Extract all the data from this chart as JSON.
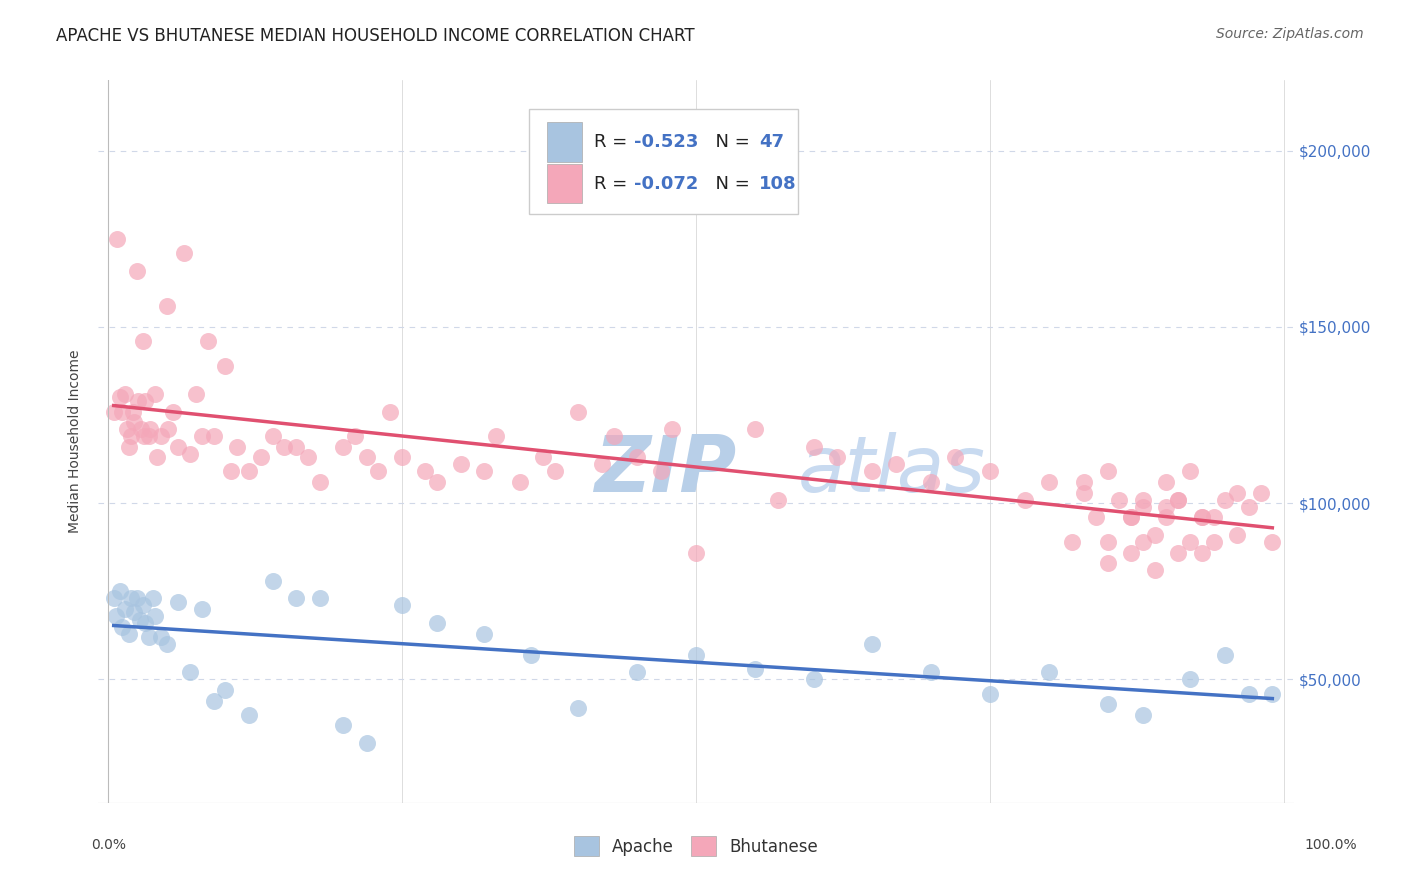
{
  "title": "APACHE VS BHUTANESE MEDIAN HOUSEHOLD INCOME CORRELATION CHART",
  "source": "Source: ZipAtlas.com",
  "ylabel": "Median Household Income",
  "watermark_zip": "ZIP",
  "watermark_atlas": "atlas",
  "legend_apache": "Apache",
  "legend_bhutanese": "Bhutanese",
  "apache_R": "-0.523",
  "apache_N": "47",
  "bhutanese_R": "-0.072",
  "bhutanese_N": "108",
  "ytick_values": [
    50000,
    100000,
    150000,
    200000
  ],
  "apache_color": "#a8c4e0",
  "apache_line_color": "#4472c4",
  "bhutanese_color": "#f4a7b9",
  "bhutanese_line_color": "#e05070",
  "background_color": "#ffffff",
  "grid_color": "#d0d8e8",
  "apache_x": [
    0.005,
    0.007,
    0.01,
    0.012,
    0.015,
    0.018,
    0.02,
    0.022,
    0.025,
    0.027,
    0.03,
    0.032,
    0.035,
    0.038,
    0.04,
    0.045,
    0.05,
    0.06,
    0.07,
    0.08,
    0.09,
    0.1,
    0.12,
    0.14,
    0.16,
    0.18,
    0.2,
    0.22,
    0.25,
    0.28,
    0.32,
    0.36,
    0.4,
    0.45,
    0.5,
    0.55,
    0.6,
    0.65,
    0.7,
    0.75,
    0.8,
    0.85,
    0.88,
    0.92,
    0.95,
    0.97,
    0.99
  ],
  "apache_y": [
    73000,
    68000,
    75000,
    65000,
    70000,
    63000,
    73000,
    69000,
    73000,
    67000,
    71000,
    66000,
    62000,
    73000,
    68000,
    62000,
    60000,
    72000,
    52000,
    70000,
    44000,
    47000,
    40000,
    78000,
    73000,
    73000,
    37000,
    32000,
    71000,
    66000,
    63000,
    57000,
    42000,
    52000,
    57000,
    53000,
    50000,
    60000,
    52000,
    46000,
    52000,
    43000,
    40000,
    50000,
    57000,
    46000,
    46000
  ],
  "bhutanese_x": [
    0.005,
    0.008,
    0.01,
    0.012,
    0.015,
    0.016,
    0.018,
    0.02,
    0.021,
    0.022,
    0.025,
    0.026,
    0.028,
    0.03,
    0.031,
    0.032,
    0.035,
    0.036,
    0.04,
    0.042,
    0.045,
    0.05,
    0.051,
    0.055,
    0.06,
    0.065,
    0.07,
    0.075,
    0.08,
    0.085,
    0.09,
    0.1,
    0.105,
    0.11,
    0.12,
    0.13,
    0.14,
    0.15,
    0.16,
    0.17,
    0.18,
    0.2,
    0.21,
    0.22,
    0.23,
    0.24,
    0.25,
    0.27,
    0.28,
    0.3,
    0.32,
    0.33,
    0.35,
    0.37,
    0.38,
    0.4,
    0.42,
    0.43,
    0.45,
    0.47,
    0.48,
    0.5,
    0.55,
    0.57,
    0.6,
    0.62,
    0.65,
    0.67,
    0.7,
    0.72,
    0.75,
    0.78,
    0.8,
    0.83,
    0.85,
    0.88,
    0.9,
    0.92,
    0.95,
    0.97,
    0.98,
    0.99,
    0.83,
    0.86,
    0.87,
    0.9,
    0.91,
    0.93,
    0.94,
    0.96,
    0.88,
    0.84,
    0.82,
    0.91,
    0.93,
    0.85,
    0.87,
    0.89,
    0.91,
    0.94,
    0.92,
    0.96,
    0.93,
    0.88,
    0.9,
    0.85,
    0.87,
    0.89
  ],
  "bhutanese_y": [
    126000,
    175000,
    130000,
    126000,
    131000,
    121000,
    116000,
    119000,
    126000,
    123000,
    166000,
    129000,
    121000,
    146000,
    119000,
    129000,
    119000,
    121000,
    131000,
    113000,
    119000,
    156000,
    121000,
    126000,
    116000,
    171000,
    114000,
    131000,
    119000,
    146000,
    119000,
    139000,
    109000,
    116000,
    109000,
    113000,
    119000,
    116000,
    116000,
    113000,
    106000,
    116000,
    119000,
    113000,
    109000,
    126000,
    113000,
    109000,
    106000,
    111000,
    109000,
    119000,
    106000,
    113000,
    109000,
    126000,
    111000,
    119000,
    113000,
    109000,
    121000,
    86000,
    121000,
    101000,
    116000,
    113000,
    109000,
    111000,
    106000,
    113000,
    109000,
    101000,
    106000,
    103000,
    109000,
    101000,
    106000,
    109000,
    101000,
    99000,
    103000,
    89000,
    106000,
    101000,
    96000,
    99000,
    101000,
    96000,
    89000,
    103000,
    99000,
    96000,
    89000,
    101000,
    96000,
    89000,
    96000,
    91000,
    86000,
    96000,
    89000,
    91000,
    86000,
    89000,
    96000,
    83000,
    86000,
    81000
  ],
  "title_fontsize": 12,
  "source_fontsize": 10,
  "legend_fontsize": 13,
  "watermark_fontsize": 56,
  "watermark_color_zip": "#b8cfe8",
  "watermark_color_atlas": "#c8daf0"
}
